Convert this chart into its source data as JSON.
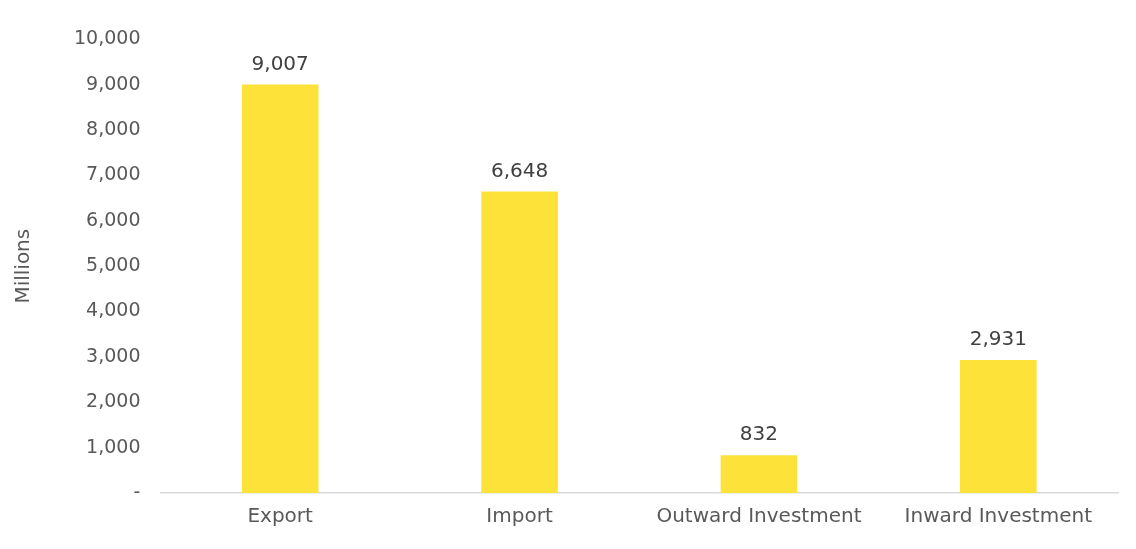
{
  "chart_data": {
    "type": "bar",
    "ylabel": "Millions",
    "categories": [
      "Export",
      "Import",
      "Outward Investment",
      "Inward Investment"
    ],
    "values": [
      9007,
      6648,
      832,
      2931
    ],
    "color": "#fde23a",
    "value_labels": [
      "9,007",
      "6,648",
      "832",
      "2,931"
    ],
    "ylim": [
      0,
      10000
    ],
    "yticks": [
      {
        "value": 0,
        "label": "-"
      },
      {
        "value": 1000,
        "label": "1,000"
      },
      {
        "value": 2000,
        "label": "2,000"
      },
      {
        "value": 3000,
        "label": "3,000"
      },
      {
        "value": 4000,
        "label": "4,000"
      },
      {
        "value": 5000,
        "label": "5,000"
      },
      {
        "value": 6000,
        "label": "6,000"
      },
      {
        "value": 7000,
        "label": "7,000"
      },
      {
        "value": 8000,
        "label": "8,000"
      },
      {
        "value": 9000,
        "label": "9,000"
      },
      {
        "value": 10000,
        "label": "10,000"
      }
    ],
    "grid": false,
    "legend": false
  }
}
